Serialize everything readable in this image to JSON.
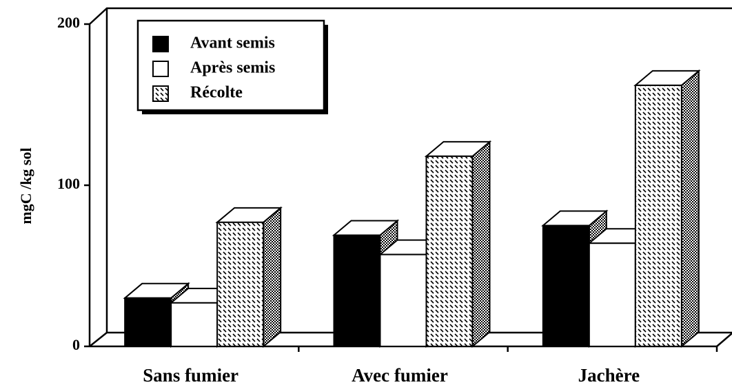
{
  "chart_data": {
    "type": "bar3d",
    "ylabel": "mgC /kg sol",
    "categories": [
      "Sans  fumier",
      "Avec  fumier",
      "Jachère"
    ],
    "series": [
      {
        "name": "Avant semis",
        "color": "#000000",
        "values": [
          30,
          69,
          75
        ]
      },
      {
        "name": "Après semis",
        "color": "#ffffff",
        "values": [
          27,
          57,
          64
        ]
      },
      {
        "name": "Récolte",
        "color": "#ffffff",
        "pattern": "dashes",
        "values": [
          77,
          118,
          162
        ]
      }
    ],
    "ylim": [
      0,
      200
    ],
    "yticks": [
      0,
      100,
      200
    ]
  }
}
